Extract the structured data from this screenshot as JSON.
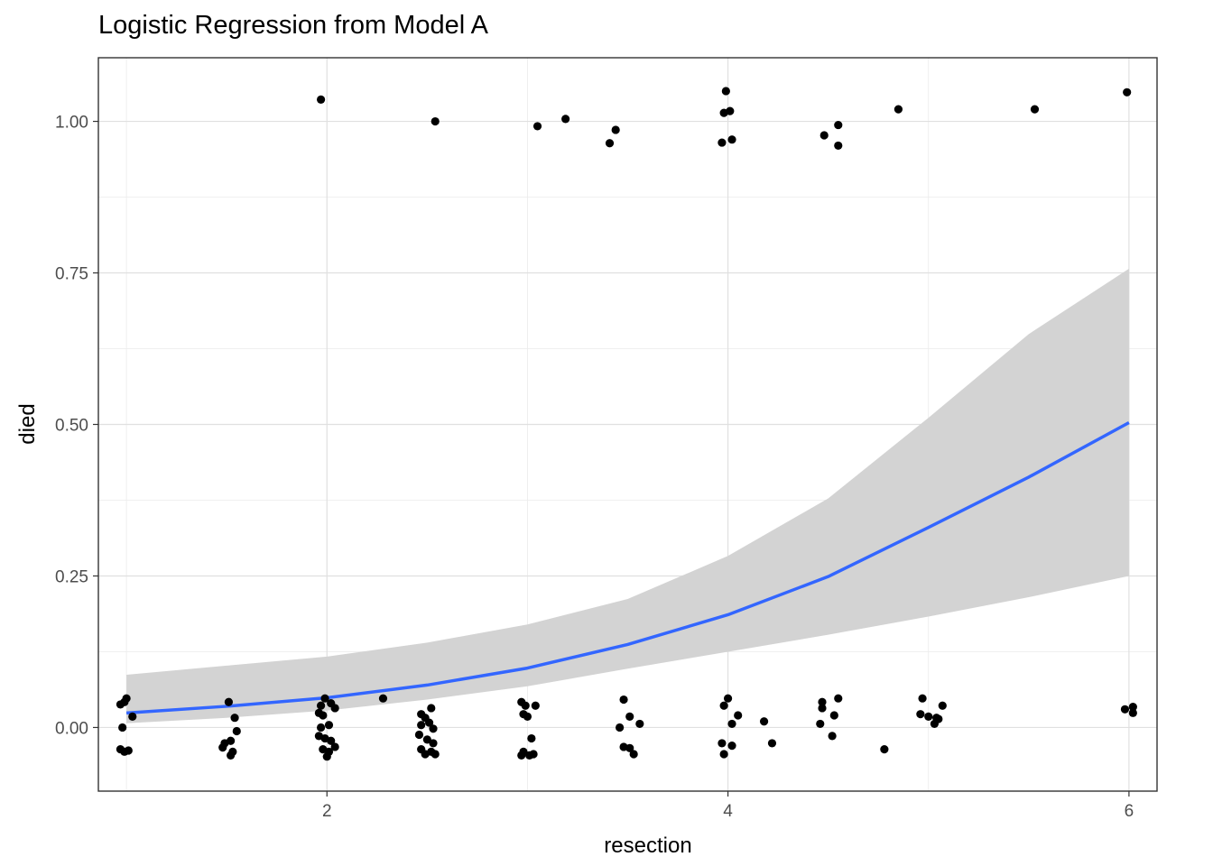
{
  "chart_data": {
    "type": "scatter",
    "title": "Logistic Regression from Model A",
    "xlabel": "resection",
    "ylabel": "died",
    "xlim": [
      0.86,
      6.14
    ],
    "ylim": [
      -0.105,
      1.105
    ],
    "x_ticks": [
      2,
      4,
      6
    ],
    "x_tick_labels": [
      "2",
      "4",
      "6"
    ],
    "y_ticks": [
      0,
      0.25,
      0.5,
      0.75,
      1
    ],
    "y_tick_labels": [
      "0.00",
      "0.25",
      "0.50",
      "0.75",
      "1.00"
    ],
    "x_minor_ticks": [
      1,
      3,
      5
    ],
    "y_minor_ticks": [
      0.125,
      0.375,
      0.625,
      0.875
    ],
    "grid": true,
    "legend": "none",
    "point_color": "#000000",
    "line_color": "#3366FF",
    "band_color": "#d3d3d3",
    "series": [
      {
        "type": "scatter",
        "points": [
          [
            1.97,
            1.036
          ],
          [
            2.54,
            1.0
          ],
          [
            3.05,
            0.992
          ],
          [
            3.19,
            1.004
          ],
          [
            3.41,
            0.964
          ],
          [
            3.44,
            0.986
          ],
          [
            3.99,
            1.05
          ],
          [
            3.98,
            1.014
          ],
          [
            4.01,
            1.017
          ],
          [
            3.97,
            0.965
          ],
          [
            4.02,
            0.97
          ],
          [
            4.48,
            0.977
          ],
          [
            4.55,
            0.994
          ],
          [
            4.55,
            0.96
          ],
          [
            4.85,
            1.02
          ],
          [
            5.53,
            1.02
          ],
          [
            5.99,
            1.048
          ],
          [
            0.97,
            0.038
          ],
          [
            0.99,
            0.042
          ],
          [
            1.0,
            0.048
          ],
          [
            1.03,
            0.018
          ],
          [
            0.98,
            0.0
          ],
          [
            0.97,
            -0.036
          ],
          [
            0.99,
            -0.04
          ],
          [
            1.01,
            -0.038
          ],
          [
            1.51,
            0.042
          ],
          [
            1.54,
            0.016
          ],
          [
            1.55,
            -0.006
          ],
          [
            1.52,
            -0.022
          ],
          [
            1.49,
            -0.026
          ],
          [
            1.48,
            -0.033
          ],
          [
            1.53,
            -0.04
          ],
          [
            1.52,
            -0.046
          ],
          [
            1.97,
            0.036
          ],
          [
            1.99,
            0.048
          ],
          [
            2.02,
            0.04
          ],
          [
            2.04,
            0.032
          ],
          [
            1.96,
            0.024
          ],
          [
            1.98,
            0.02
          ],
          [
            1.97,
            0.0
          ],
          [
            2.01,
            0.004
          ],
          [
            1.96,
            -0.014
          ],
          [
            1.99,
            -0.018
          ],
          [
            2.02,
            -0.022
          ],
          [
            1.98,
            -0.036
          ],
          [
            2.01,
            -0.04
          ],
          [
            2.04,
            -0.032
          ],
          [
            2.0,
            -0.048
          ],
          [
            2.28,
            0.048
          ],
          [
            2.47,
            0.022
          ],
          [
            2.49,
            0.016
          ],
          [
            2.52,
            0.032
          ],
          [
            2.47,
            0.004
          ],
          [
            2.51,
            0.008
          ],
          [
            2.53,
            -0.002
          ],
          [
            2.46,
            -0.012
          ],
          [
            2.5,
            -0.02
          ],
          [
            2.53,
            -0.026
          ],
          [
            2.47,
            -0.036
          ],
          [
            2.52,
            -0.04
          ],
          [
            2.49,
            -0.044
          ],
          [
            2.54,
            -0.044
          ],
          [
            2.97,
            0.042
          ],
          [
            2.99,
            0.036
          ],
          [
            3.04,
            0.036
          ],
          [
            2.98,
            0.022
          ],
          [
            3.0,
            0.018
          ],
          [
            3.02,
            -0.018
          ],
          [
            2.98,
            -0.04
          ],
          [
            3.01,
            -0.046
          ],
          [
            3.03,
            -0.044
          ],
          [
            2.97,
            -0.046
          ],
          [
            3.48,
            0.046
          ],
          [
            3.51,
            0.018
          ],
          [
            3.56,
            0.006
          ],
          [
            3.46,
            0.0
          ],
          [
            3.48,
            -0.032
          ],
          [
            3.51,
            -0.034
          ],
          [
            3.53,
            -0.044
          ],
          [
            3.98,
            0.036
          ],
          [
            4.0,
            0.048
          ],
          [
            4.05,
            0.02
          ],
          [
            4.02,
            0.006
          ],
          [
            3.97,
            -0.026
          ],
          [
            4.02,
            -0.03
          ],
          [
            3.98,
            -0.044
          ],
          [
            4.18,
            0.01
          ],
          [
            4.22,
            -0.026
          ],
          [
            4.47,
            0.042
          ],
          [
            4.47,
            0.032
          ],
          [
            4.53,
            0.02
          ],
          [
            4.55,
            0.048
          ],
          [
            4.46,
            0.006
          ],
          [
            4.52,
            -0.014
          ],
          [
            4.78,
            -0.036
          ],
          [
            4.97,
            0.048
          ],
          [
            5.07,
            0.036
          ],
          [
            4.96,
            0.022
          ],
          [
            5.0,
            0.018
          ],
          [
            5.04,
            0.016
          ],
          [
            5.05,
            0.014
          ],
          [
            5.03,
            0.006
          ],
          [
            5.98,
            0.03
          ],
          [
            6.02,
            0.034
          ],
          [
            6.02,
            0.024
          ]
        ]
      },
      {
        "type": "line",
        "name": "",
        "x": [
          1.0,
          1.5,
          2.0,
          2.5,
          3.0,
          3.5,
          4.0,
          4.5,
          5.0,
          5.5,
          6.0
        ],
        "y": [
          0.024,
          0.035,
          0.049,
          0.07,
          0.098,
          0.137,
          0.186,
          0.249,
          0.33,
          0.413,
          0.503
        ]
      },
      {
        "type": "band",
        "name": "",
        "x": [
          1.0,
          1.5,
          2.0,
          2.5,
          3.0,
          3.5,
          4.0,
          4.5,
          5.0,
          5.5,
          6.0
        ],
        "lower": [
          0.007,
          0.016,
          0.028,
          0.046,
          0.068,
          0.097,
          0.125,
          0.153,
          0.183,
          0.215,
          0.25
        ],
        "upper": [
          0.087,
          0.102,
          0.117,
          0.14,
          0.17,
          0.212,
          0.283,
          0.378,
          0.511,
          0.649,
          0.757
        ]
      }
    ]
  }
}
